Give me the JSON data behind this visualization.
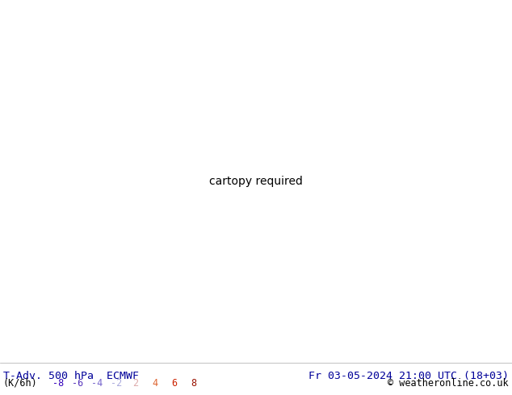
{
  "title_left": "T-Adv. 500 hPa  ECMWF",
  "title_right": "Fr 03-05-2024 21:00 UTC (18+03)",
  "label_units": "(K/6h)",
  "legend_values": [
    -8,
    -6,
    -4,
    -2,
    2,
    4,
    6,
    8
  ],
  "legend_colors_neg": [
    "#3300bb",
    "#5533bb",
    "#7766cc",
    "#aaaadd"
  ],
  "legend_colors_pos": [
    "#ddaaaa",
    "#dd6633",
    "#cc2200",
    "#991100"
  ],
  "copyright": "© weatheronline.co.uk",
  "title_color": "#000099",
  "title_fontsize": 9.5,
  "label_fontsize": 8.5,
  "fig_width": 6.34,
  "fig_height": 4.9,
  "dpi": 100,
  "land_color": "#b8ddb8",
  "ocean_color": "#d8ecd8",
  "border_color": "#888888",
  "contour_color": "#000000",
  "map_extent": [
    -175,
    -50,
    15,
    80
  ]
}
